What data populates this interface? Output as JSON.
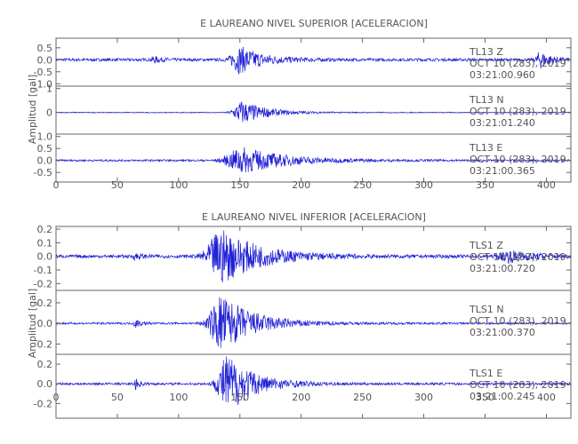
{
  "chart_data": [
    {
      "type": "line",
      "title": "E LAUREANO NIVEL SUPERIOR [ACELERACION]",
      "ylabel": "Amplitud [gal]",
      "xlim": [
        0,
        420
      ],
      "xticks": [
        "0",
        "50",
        "100",
        "150",
        "200",
        "250",
        "300",
        "350",
        "400"
      ],
      "xtick_values": [
        0,
        50,
        100,
        150,
        200,
        250,
        300,
        350,
        400
      ],
      "line_color": "#1f1fd6",
      "panels": [
        {
          "station": "TL13",
          "component": "Z",
          "date_line": "OCT 10 (283), 2019",
          "time_line": "03:21:00.960",
          "ylim": [
            -1.1,
            0.9
          ],
          "ytick_values": [
            0.5,
            0.0,
            -0.5,
            -1.0
          ],
          "yticks": [
            "0.5",
            "0.0",
            "-0.5",
            "-1.0"
          ],
          "noise": 0.06,
          "events": [
            [
              150,
              0.55,
              9
            ],
            [
              395,
              0.35,
              4
            ],
            [
              80,
              0.12,
              3
            ]
          ]
        },
        {
          "station": "TL13",
          "component": "N",
          "date_line": "OCT 10 (283), 2019",
          "time_line": "03:21:01.240",
          "ylim": [
            -0.9,
            1.1
          ],
          "ytick_values": [
            1.0,
            0.0
          ],
          "yticks": [
            "1",
            "0"
          ],
          "noise": 0.02,
          "events": [
            [
              152,
              0.5,
              9
            ]
          ]
        },
        {
          "station": "TL13",
          "component": "E",
          "date_line": "OCT 10 (283), 2019",
          "time_line": "03:21:00.365",
          "ylim": [
            -0.9,
            1.1
          ],
          "ytick_values": [
            1.0,
            0.5,
            0.0,
            -0.5
          ],
          "yticks": [
            "1.0",
            "0.5",
            "0.0",
            "-0.5"
          ],
          "noise": 0.04,
          "events": [
            [
              152,
              0.55,
              16
            ]
          ]
        }
      ]
    },
    {
      "type": "line",
      "title": "E LAUREANO NIVEL INFERIOR [ACELERACION]",
      "ylabel": "Amplitud [gal]",
      "xlim": [
        0,
        420
      ],
      "xticks": [
        "0",
        "50",
        "100",
        "150",
        "200",
        "250",
        "300",
        "350",
        "400"
      ],
      "xtick_values": [
        0,
        50,
        100,
        150,
        200,
        250,
        300,
        350,
        400
      ],
      "line_color": "#1f1fd6",
      "panels": [
        {
          "station": "TLS1",
          "component": "Z",
          "date_line": "OCT 10 (283), 2019",
          "time_line": "03:21:00.720",
          "ylim": [
            -0.25,
            0.22
          ],
          "ytick_values": [
            0.2,
            0.1,
            0.0,
            -0.1,
            -0.2
          ],
          "yticks": [
            "0.2",
            "0.1",
            "0.0",
            "-0.1",
            "-0.2"
          ],
          "noise": 0.012,
          "events": [
            [
              135,
              0.2,
              14
            ],
            [
              370,
              0.04,
              10
            ],
            [
              65,
              0.02,
              3
            ]
          ]
        },
        {
          "station": "TLS1",
          "component": "N",
          "date_line": "OCT 10 (283), 2019",
          "time_line": "03:21:00.370",
          "ylim": [
            -0.3,
            0.32
          ],
          "ytick_values": [
            0.2,
            0.0,
            -0.2
          ],
          "yticks": [
            "0.2",
            "0.0",
            "-0.2"
          ],
          "noise": 0.01,
          "events": [
            [
              135,
              0.28,
              12
            ],
            [
              65,
              0.04,
              2
            ]
          ]
        },
        {
          "station": "TLS1",
          "component": "E",
          "date_line": "OCT 10 (283), 2019",
          "time_line": "03:21:00.245",
          "ylim": [
            -0.35,
            0.3
          ],
          "ytick_values": [
            0.2,
            0.0,
            -0.2
          ],
          "yticks": [
            "0.2",
            "0.0",
            "-0.2"
          ],
          "noise": 0.012,
          "events": [
            [
              140,
              0.3,
              10
            ],
            [
              65,
              0.05,
              2
            ]
          ]
        }
      ]
    }
  ]
}
